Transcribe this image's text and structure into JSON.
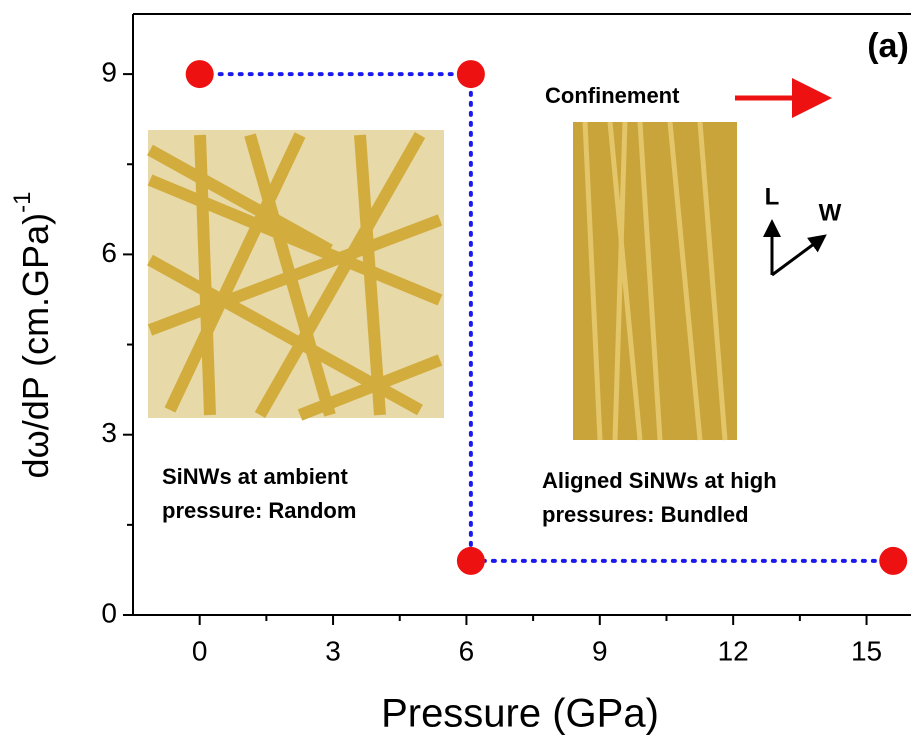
{
  "chart_data": {
    "type": "scatter",
    "xlabel": "Pressure (GPa)",
    "ylabel": "dω/dP (cm.GPa)",
    "ylabel_superscript": "-1",
    "x": [
      0,
      6.1,
      6.1,
      15.6
    ],
    "series": [
      {
        "color": "#ee1111",
        "line_color": "#1a1aee",
        "values": [
          9,
          9,
          0.9,
          0.9
        ]
      }
    ],
    "xlim": [
      -1.5,
      16
    ],
    "xticks": [
      0,
      3,
      6,
      9,
      12,
      15
    ],
    "ylim": [
      0,
      10
    ],
    "yticks": [
      0,
      3,
      6,
      9
    ],
    "annotations": {
      "panel": "(a)",
      "confinement": "Confinement",
      "left_caption": [
        "SiNWs at ambient",
        "pressure: Random"
      ],
      "right_caption": [
        "Aligned SiNWs at high",
        "pressures: Bundled"
      ],
      "axis_l": "L",
      "axis_w": "W"
    }
  }
}
